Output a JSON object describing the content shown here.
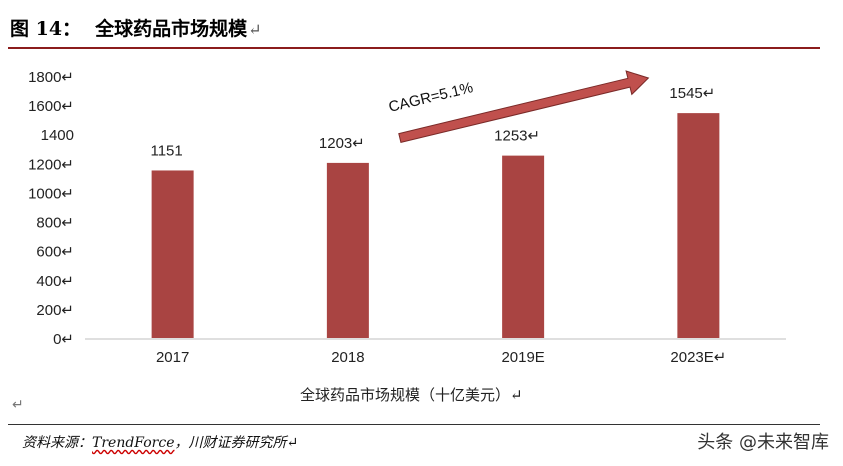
{
  "figure": {
    "label": "图 14：",
    "title": "全球药品市场规模",
    "para_mark": "↵"
  },
  "chart_data": {
    "type": "bar",
    "categories": [
      "2017",
      "2018",
      "2019E",
      "2023E"
    ],
    "category_marks": [
      "",
      "",
      "",
      "↵"
    ],
    "values": [
      1151,
      1203,
      1253,
      1545
    ],
    "value_labels": [
      "1151",
      "1203↵",
      "1253↵",
      "1545↵"
    ],
    "bar_color": "#a94442",
    "yticks": [
      "0↵",
      "200↵",
      "400↵",
      "600↵",
      "800↵",
      "1000↵",
      "1200↵",
      "1400",
      "1600↵",
      "1800↵"
    ],
    "ylim": [
      0,
      1800
    ],
    "xlabel": "全球药品市场规模（十亿美元）↵",
    "grid": false,
    "annotation": {
      "text": "CAGR=5.1%",
      "arrow_color": "#c0504d",
      "from_category": "2018",
      "to_category": "2023E"
    }
  },
  "footer": {
    "source_prefix": "资料来源：",
    "source_brand": "TrendForce",
    "source_suffix": "，川财证券研究所↵",
    "watermark": "头条 @未来智库"
  }
}
